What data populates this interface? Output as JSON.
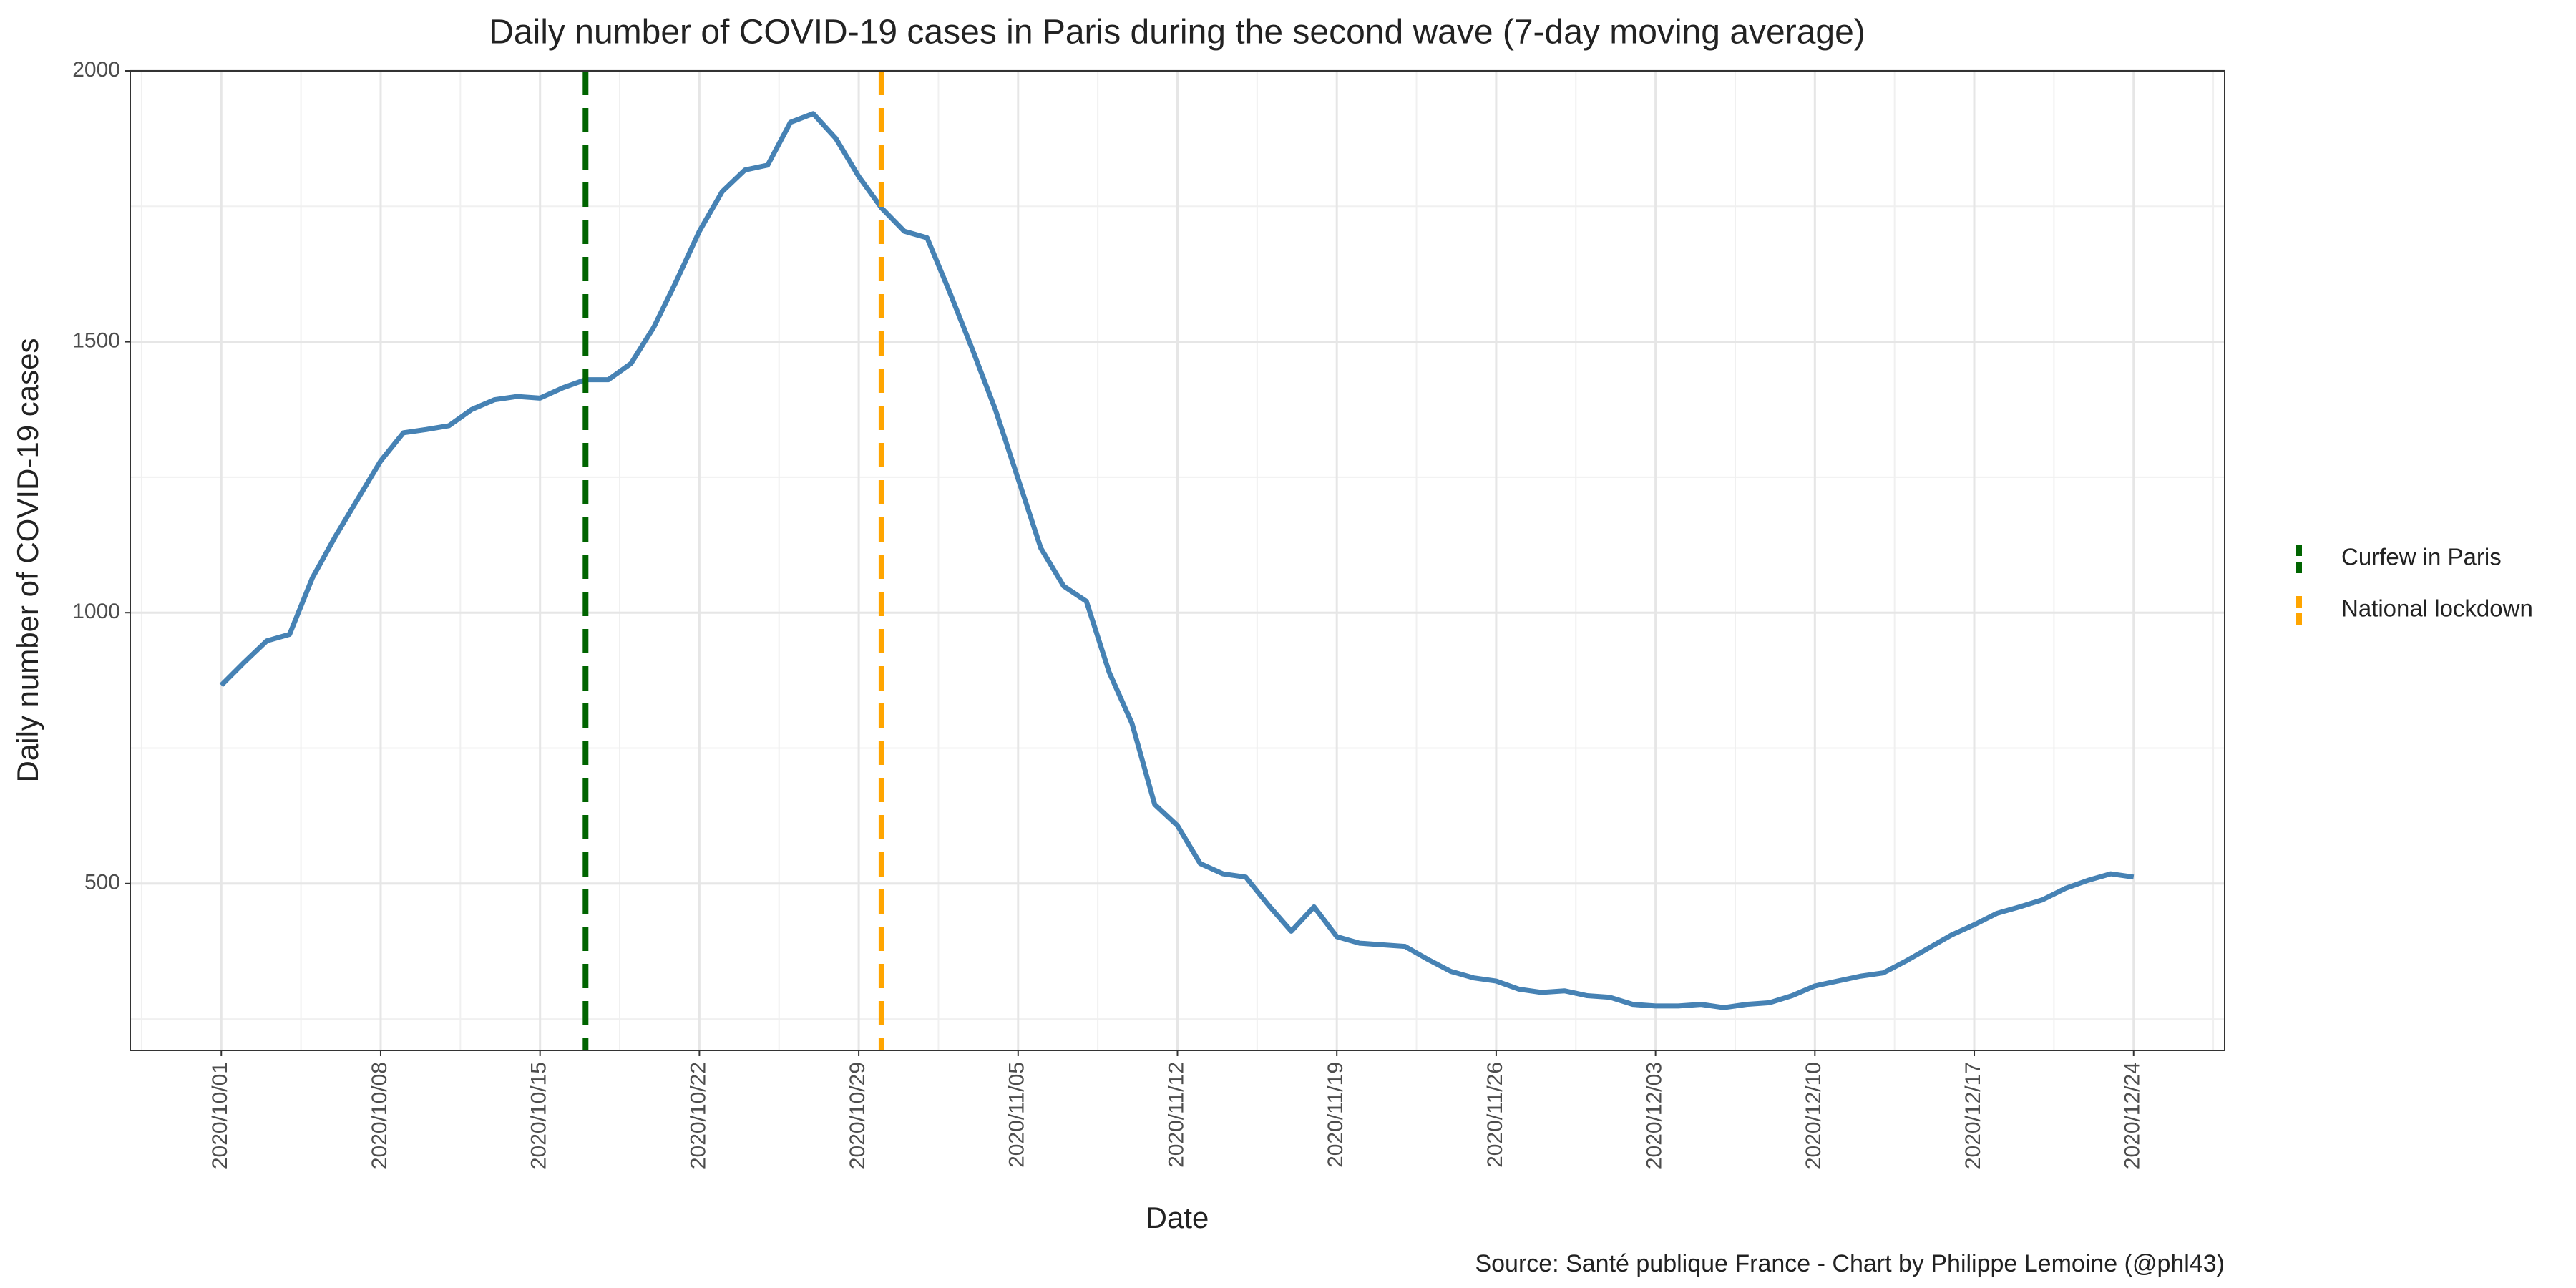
{
  "chart_data": {
    "type": "line",
    "title": "Daily number of COVID-19 cases in Paris during the second wave (7-day moving average)",
    "xlabel": "Date",
    "ylabel": "Daily number of COVID-19 cases",
    "source": "Source: Santé publique France - Chart by Philippe Lemoine (@phl43)",
    "x": [
      "2020/10/01",
      "2020/10/02",
      "2020/10/03",
      "2020/10/04",
      "2020/10/05",
      "2020/10/06",
      "2020/10/07",
      "2020/10/08",
      "2020/10/09",
      "2020/10/10",
      "2020/10/11",
      "2020/10/12",
      "2020/10/13",
      "2020/10/14",
      "2020/10/15",
      "2020/10/16",
      "2020/10/17",
      "2020/10/18",
      "2020/10/19",
      "2020/10/20",
      "2020/10/21",
      "2020/10/22",
      "2020/10/23",
      "2020/10/24",
      "2020/10/25",
      "2020/10/26",
      "2020/10/27",
      "2020/10/28",
      "2020/10/29",
      "2020/10/30",
      "2020/10/31",
      "2020/11/01",
      "2020/11/02",
      "2020/11/03",
      "2020/11/04",
      "2020/11/05",
      "2020/11/06",
      "2020/11/07",
      "2020/11/08",
      "2020/11/09",
      "2020/11/10",
      "2020/11/11",
      "2020/11/12",
      "2020/11/13",
      "2020/11/14",
      "2020/11/15",
      "2020/11/16",
      "2020/11/17",
      "2020/11/18",
      "2020/11/19",
      "2020/11/20",
      "2020/11/21",
      "2020/11/22",
      "2020/11/23",
      "2020/11/24",
      "2020/11/25",
      "2020/11/26",
      "2020/11/27",
      "2020/11/28",
      "2020/11/29",
      "2020/11/30",
      "2020/12/01",
      "2020/12/02",
      "2020/12/03",
      "2020/12/04",
      "2020/12/05",
      "2020/12/06",
      "2020/12/07",
      "2020/12/08",
      "2020/12/09",
      "2020/12/10",
      "2020/12/11",
      "2020/12/12",
      "2020/12/13",
      "2020/12/14",
      "2020/12/15",
      "2020/12/16",
      "2020/12/17",
      "2020/12/18",
      "2020/12/19",
      "2020/12/20",
      "2020/12/21",
      "2020/12/22",
      "2020/12/23",
      "2020/12/24"
    ],
    "series": [
      {
        "color": "#4682b4",
        "values": [
          866,
          908,
          948,
          960,
          1064,
          1140,
          1210,
          1280,
          1332,
          1338,
          1345,
          1375,
          1393,
          1399,
          1396,
          1415,
          1430,
          1430,
          1460,
          1527,
          1613,
          1704,
          1777,
          1817,
          1826,
          1905,
          1921,
          1875,
          1805,
          1747,
          1704,
          1692,
          1591,
          1485,
          1375,
          1247,
          1119,
          1049,
          1021,
          890,
          796,
          646,
          607,
          537,
          518,
          512,
          460,
          412,
          457,
          402,
          390,
          387,
          384,
          360,
          338,
          326,
          320,
          305,
          299,
          302,
          293,
          290,
          277,
          274,
          274,
          277,
          271,
          277,
          280,
          293,
          311,
          320,
          329,
          335,
          357,
          381,
          405,
          424,
          445,
          457,
          470,
          491,
          506,
          518,
          512
        ]
      }
    ],
    "vlines": [
      {
        "x": "2020/10/17",
        "name": "Curfew in Paris",
        "color": "#006400"
      },
      {
        "x": "2020/10/30",
        "name": "National lockdown",
        "color": "#ffa500"
      }
    ],
    "xlim": [
      "2020/09/27",
      "2020/12/28"
    ],
    "xticks": [
      "2020/10/01",
      "2020/10/08",
      "2020/10/15",
      "2020/10/22",
      "2020/10/29",
      "2020/11/05",
      "2020/11/12",
      "2020/11/19",
      "2020/11/26",
      "2020/12/03",
      "2020/12/10",
      "2020/12/17",
      "2020/12/24"
    ],
    "ylim": [
      192,
      2000
    ],
    "yticks": [
      500,
      1000,
      1500,
      2000
    ],
    "grid": true,
    "legend": "right"
  }
}
